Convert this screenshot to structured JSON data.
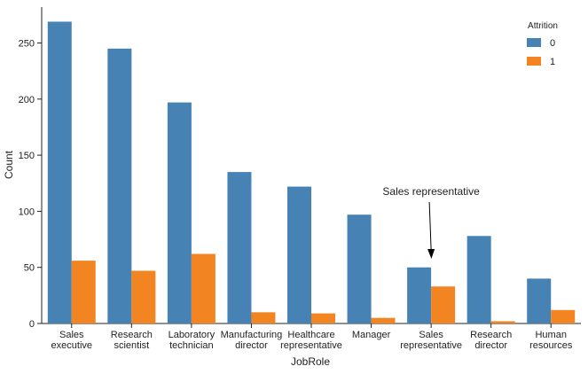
{
  "chart_data": {
    "type": "bar",
    "x_label": "JobRole",
    "y_label": "Count",
    "categories": [
      [
        "Sales",
        "executive"
      ],
      [
        "Research",
        "scientist"
      ],
      [
        "Laboratory",
        "technician"
      ],
      [
        "Manufacturing",
        "director"
      ],
      [
        "Healthcare",
        "representative"
      ],
      [
        "Manager"
      ],
      [
        "Sales",
        "representative"
      ],
      [
        "Research",
        "director"
      ],
      [
        "Human",
        "resources"
      ]
    ],
    "series": [
      {
        "name": "0",
        "color": "#4682b4",
        "values": [
          269,
          245,
          197,
          135,
          122,
          97,
          50,
          78,
          40
        ]
      },
      {
        "name": "1",
        "color": "#f28522",
        "values": [
          56,
          47,
          62,
          10,
          9,
          5,
          33,
          2,
          12
        ]
      }
    ],
    "legend_title": "Attrition",
    "legend_position": "upper right",
    "ylim": [
      0,
      282
    ],
    "yticks": [
      0,
      50,
      100,
      150,
      200,
      250
    ],
    "grid": false,
    "annotation": {
      "text": "Sales representative",
      "category_index": 6
    }
  }
}
